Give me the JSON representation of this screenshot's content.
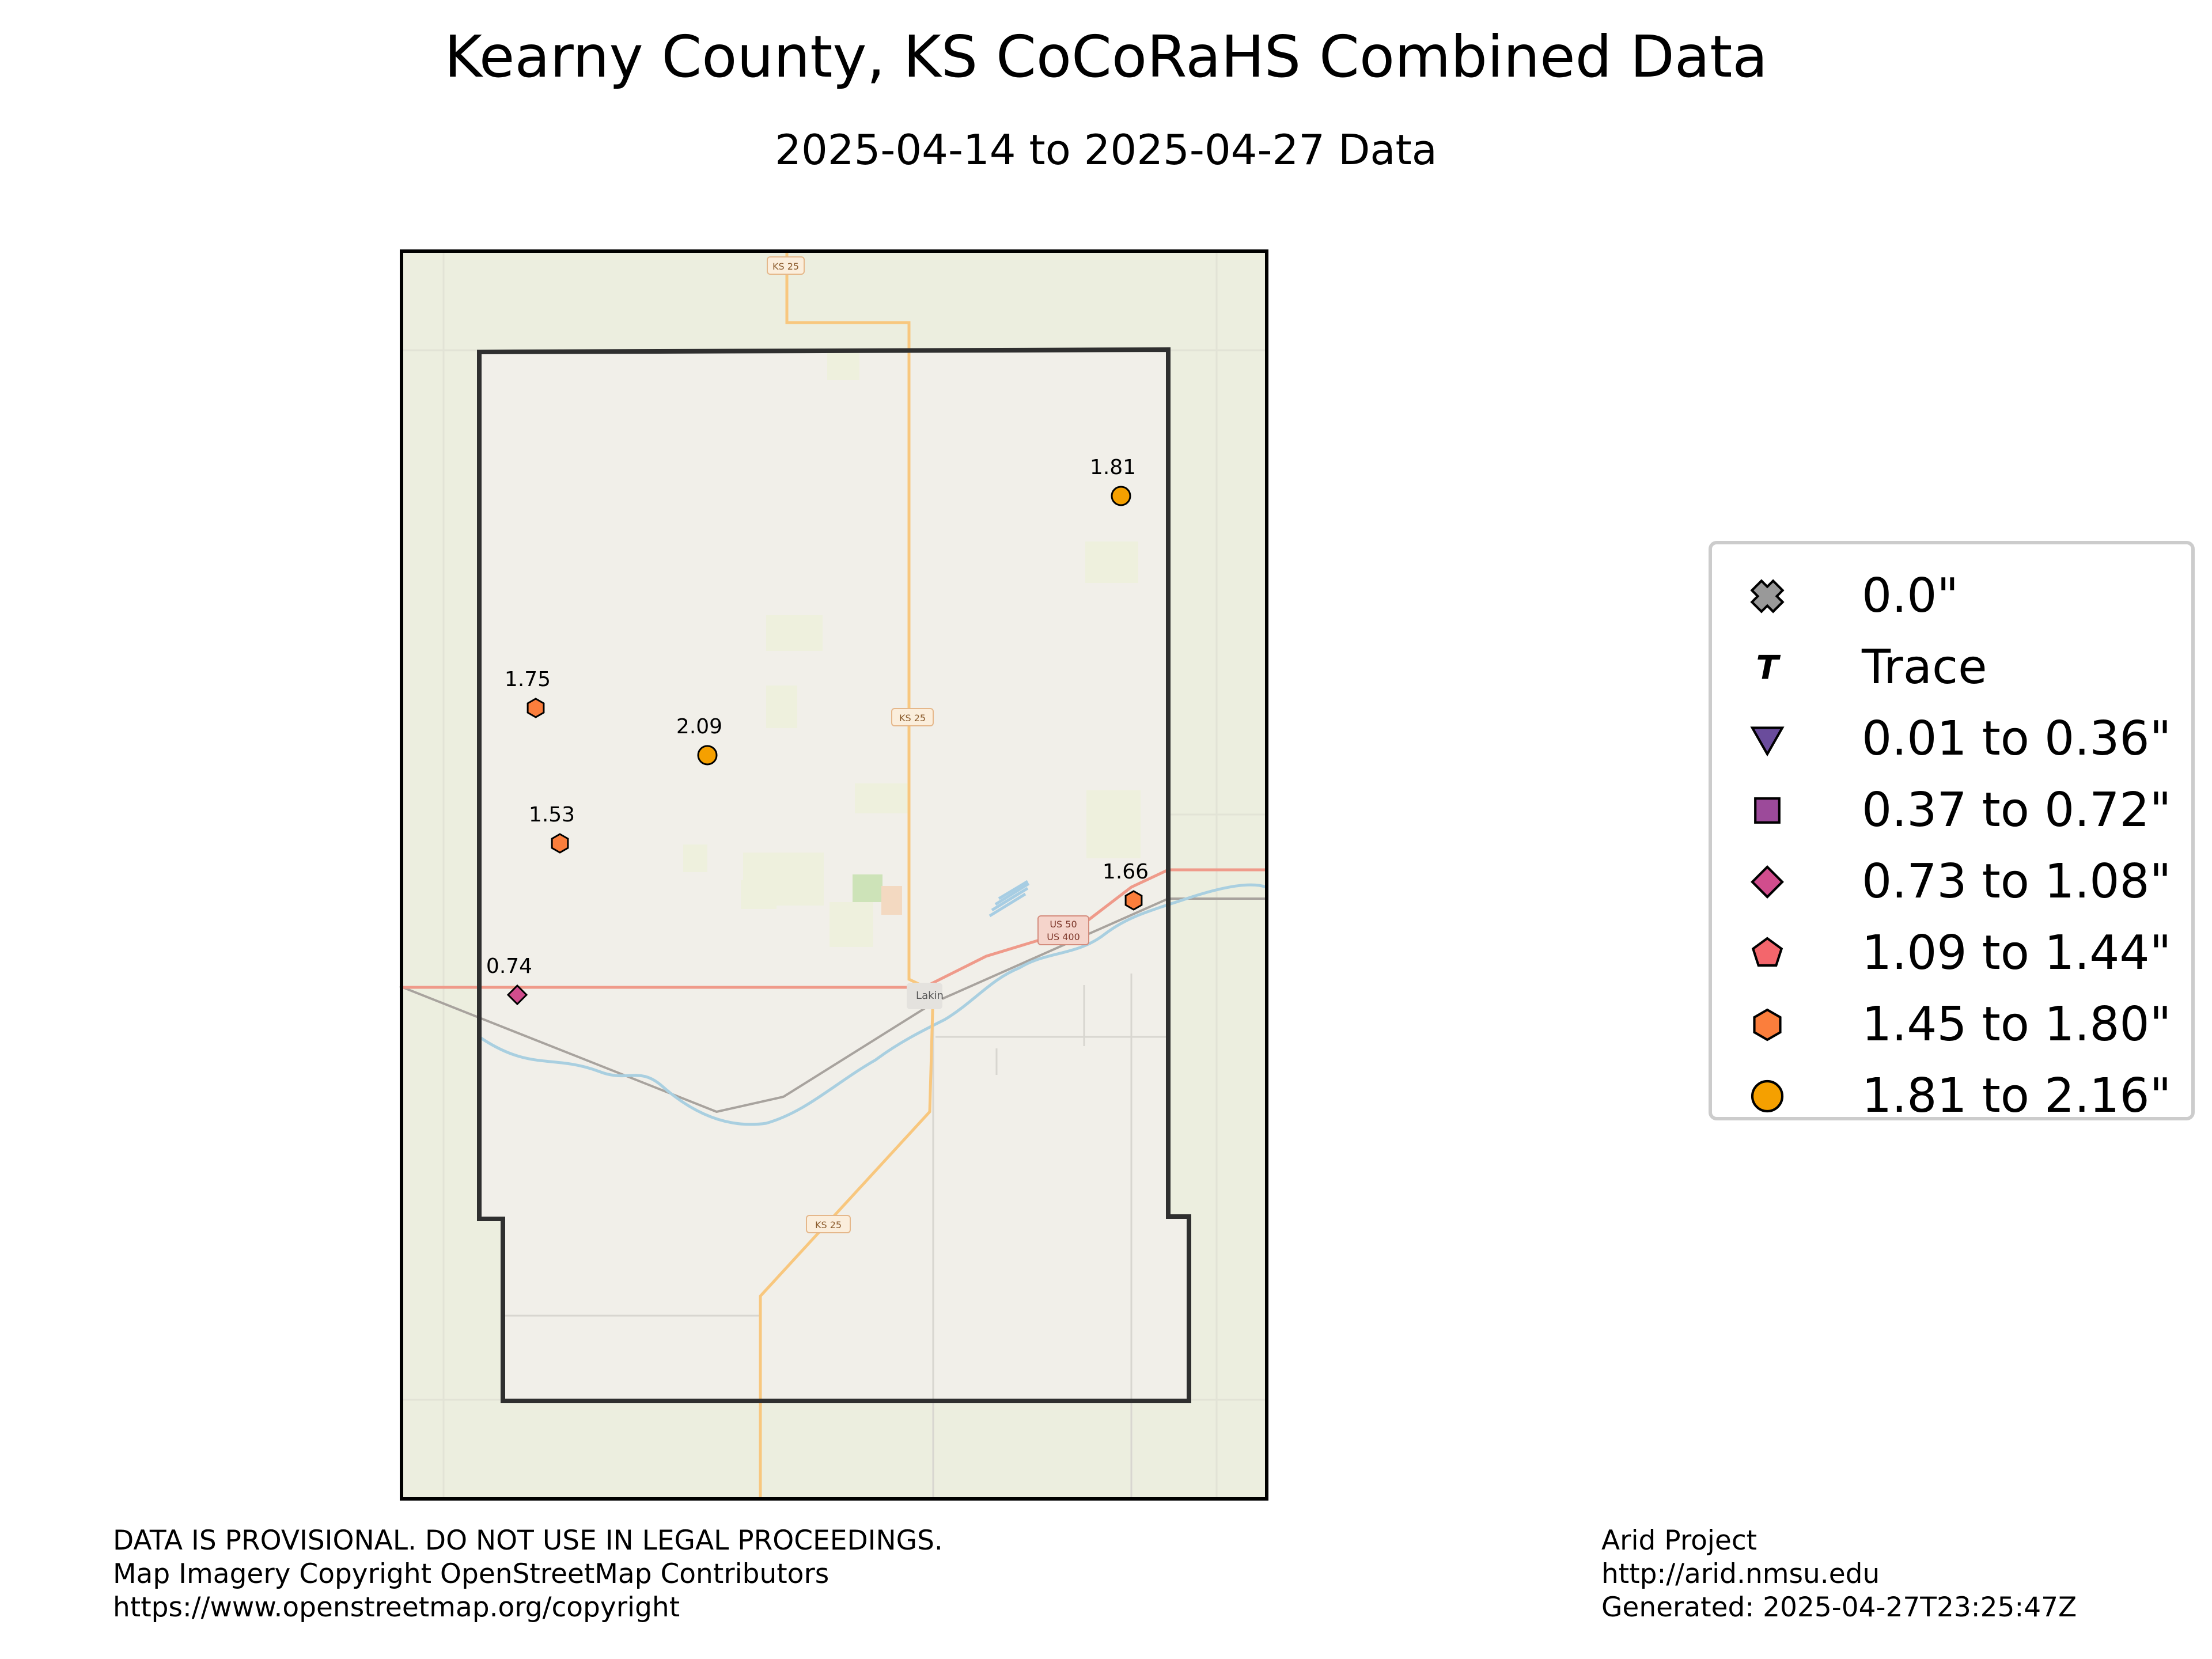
{
  "title": "Kearny County, KS CoCoRaHS Combined Data",
  "subtitle": "2025-04-14 to 2025-04-27 Data",
  "map": {
    "road_labels": [
      "KS 25",
      "KS 25",
      "KS 25",
      "US 50",
      "US 400"
    ],
    "place_labels": [
      "Lakin"
    ]
  },
  "stations": [
    {
      "value": "1.81",
      "category": "1.81 to 2.16\"",
      "color": "#f5a000"
    },
    {
      "value": "1.75",
      "category": "1.45 to 1.80\"",
      "color": "#fb7e3c"
    },
    {
      "value": "2.09",
      "category": "1.81 to 2.16\"",
      "color": "#f5a000"
    },
    {
      "value": "1.53",
      "category": "1.45 to 1.80\"",
      "color": "#fb7e3c"
    },
    {
      "value": "1.66",
      "category": "1.45 to 1.80\"",
      "color": "#fb7e3c"
    },
    {
      "value": "0.74",
      "category": "0.73 to 1.08\"",
      "color": "#d14d8d"
    }
  ],
  "legend": {
    "items": [
      {
        "label": "0.0\"",
        "icon": "x-marker-icon",
        "color": "#999999"
      },
      {
        "label": "Trace",
        "icon": "t-marker-icon",
        "color": "#000000"
      },
      {
        "label": "0.01 to 0.36\"",
        "icon": "triangle-down-icon",
        "color": "#6a4c9c"
      },
      {
        "label": "0.37 to 0.72\"",
        "icon": "square-icon",
        "color": "#9c4a9a"
      },
      {
        "label": "0.73 to 1.08\"",
        "icon": "diamond-icon",
        "color": "#d14d8d"
      },
      {
        "label": "1.09 to 1.44\"",
        "icon": "pentagon-icon",
        "color": "#f3666c"
      },
      {
        "label": "1.45 to 1.80\"",
        "icon": "hexagon-icon",
        "color": "#fb7e3c"
      },
      {
        "label": "1.81 to 2.16\"",
        "icon": "circle-icon",
        "color": "#f5a000"
      }
    ]
  },
  "footer": {
    "left": [
      "DATA IS PROVISIONAL. DO NOT USE IN LEGAL PROCEEDINGS.",
      "Map Imagery Copyright OpenStreetMap Contributors",
      "https://www.openstreetmap.org/copyright"
    ],
    "right": [
      "Arid Project",
      "http://arid.nmsu.edu",
      "Generated: 2025-04-27T23:25:47Z"
    ]
  }
}
